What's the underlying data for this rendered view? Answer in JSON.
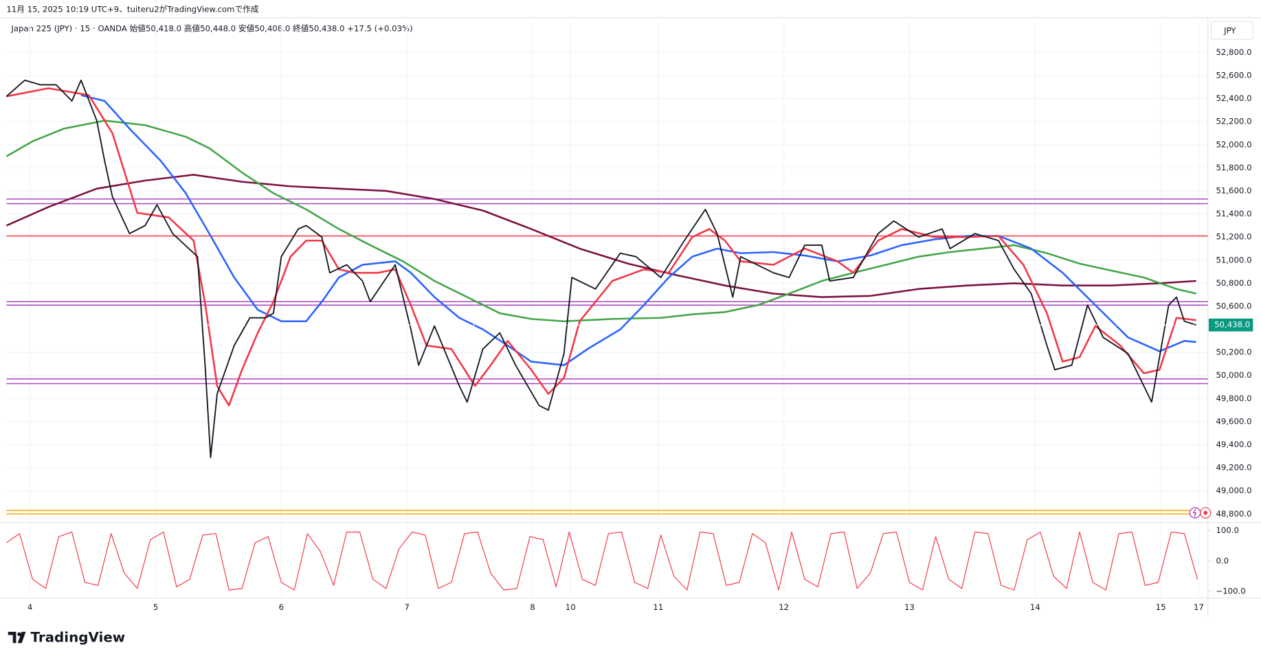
{
  "credit": "11月 15, 2025 10:19 UTC+9、tuiteru2がTradingView.comで作成",
  "brand": "TradingView",
  "chart_data": [
    {
      "type": "line",
      "title": "Japan 225 (JPY) · 15 · OANDA  始値50,418.0  高値50,448.0  安値50,408.0  終値50,438.0  +17.5 (+0.03%)",
      "currency": "JPY",
      "xlim": [
        0,
        918
      ],
      "ylim": [
        48740,
        53060
      ],
      "yticks": [
        {
          "value": 48800,
          "label": "48,800.0"
        },
        {
          "value": 49000,
          "label": "49,000.0"
        },
        {
          "value": 49200,
          "label": "49,200.0"
        },
        {
          "value": 49400,
          "label": "49,400.0"
        },
        {
          "value": 49600,
          "label": "49,600.0"
        },
        {
          "value": 49800,
          "label": "49,800.0"
        },
        {
          "value": 50000,
          "label": "50,000.0"
        },
        {
          "value": 50200,
          "label": "50,200.0"
        },
        {
          "value": 50600,
          "label": "50,600.0"
        },
        {
          "value": 50800,
          "label": "50,800.0"
        },
        {
          "value": 51000,
          "label": "51,000.0"
        },
        {
          "value": 51200,
          "label": "51,200.0"
        },
        {
          "value": 51400,
          "label": "51,400.0"
        },
        {
          "value": 51600,
          "label": "51,600.0"
        },
        {
          "value": 51800,
          "label": "51,800.0"
        },
        {
          "value": 52000,
          "label": "52,000.0"
        },
        {
          "value": 52200,
          "label": "52,200.0"
        },
        {
          "value": 52400,
          "label": "52,400.0"
        },
        {
          "value": 52600,
          "label": "52,600.0"
        },
        {
          "value": 52800,
          "label": "52,800.0"
        }
      ],
      "grid": true,
      "last": {
        "value": 50438,
        "label": "50,438.0",
        "color": "#089981"
      },
      "hlines": [
        {
          "value": 51530,
          "color": "#ab47bc"
        },
        {
          "value": 51490,
          "color": "#ab47bc"
        },
        {
          "value": 51210,
          "color": "#f23645"
        },
        {
          "value": 50640,
          "color": "#ab47bc"
        },
        {
          "value": 50610,
          "color": "#ab47bc"
        },
        {
          "value": 49970,
          "color": "#ab47bc"
        },
        {
          "value": 49930,
          "color": "#ab47bc"
        },
        {
          "value": 48830,
          "color": "#f7a600"
        },
        {
          "value": 48800,
          "color": "#f7a600"
        }
      ],
      "series": [
        {
          "color": "#7b1240",
          "width": 2.2,
          "x": [
            0,
            32,
            69,
            106,
            143,
            180,
            217,
            254,
            290,
            327,
            364,
            401,
            438,
            475,
            512,
            549,
            586,
            623,
            660,
            697,
            734,
            770,
            807,
            844,
            881,
            909
          ],
          "values": [
            51300,
            51460,
            51620,
            51690,
            51740,
            51680,
            51640,
            51620,
            51600,
            51530,
            51430,
            51270,
            51100,
            50970,
            50870,
            50780,
            50710,
            50680,
            50690,
            50750,
            50780,
            50800,
            50780,
            50780,
            50800,
            50820
          ]
        },
        {
          "color": "#43a547",
          "width": 2.2,
          "x": [
            0,
            20,
            44,
            75,
            106,
            137,
            155,
            180,
            204,
            229,
            254,
            278,
            303,
            327,
            352,
            377,
            401,
            426,
            463,
            500,
            524,
            549,
            574,
            598,
            623,
            647,
            672,
            697,
            721,
            746,
            770,
            795,
            820,
            844,
            869,
            894,
            909
          ],
          "values": [
            51900,
            52030,
            52140,
            52210,
            52170,
            52070,
            51970,
            51760,
            51580,
            51440,
            51270,
            51130,
            50990,
            50820,
            50680,
            50540,
            50490,
            50470,
            50490,
            50500,
            50530,
            50550,
            50610,
            50710,
            50820,
            50890,
            50960,
            51030,
            51070,
            51100,
            51130,
            51060,
            50970,
            50910,
            50850,
            50750,
            50710
          ]
        },
        {
          "color": "#2962ff",
          "width": 2.2,
          "x": [
            57,
            75,
            94,
            118,
            137,
            155,
            174,
            192,
            210,
            229,
            241,
            254,
            272,
            297,
            309,
            327,
            346,
            364,
            383,
            401,
            426,
            444,
            469,
            487,
            506,
            524,
            543,
            561,
            586,
            610,
            635,
            660,
            684,
            709,
            734,
            758,
            783,
            807,
            832,
            857,
            881,
            900,
            909
          ],
          "values": [
            52430,
            52380,
            52140,
            51860,
            51580,
            51230,
            50850,
            50570,
            50470,
            50470,
            50640,
            50850,
            50960,
            50990,
            50890,
            50680,
            50500,
            50400,
            50260,
            50120,
            50090,
            50230,
            50400,
            50610,
            50850,
            51030,
            51100,
            51060,
            51070,
            51040,
            50990,
            51040,
            51130,
            51180,
            51210,
            51210,
            51100,
            50890,
            50610,
            50330,
            50210,
            50300,
            50290
          ]
        },
        {
          "color": "#f23645",
          "width": 2.2,
          "x": [
            0,
            32,
            63,
            81,
            100,
            124,
            143,
            152,
            161,
            170,
            180,
            192,
            204,
            217,
            229,
            241,
            254,
            266,
            284,
            297,
            309,
            321,
            340,
            358,
            370,
            383,
            401,
            414,
            426,
            438,
            463,
            487,
            506,
            524,
            537,
            549,
            561,
            586,
            610,
            635,
            647,
            666,
            684,
            709,
            734,
            758,
            777,
            795,
            807,
            820,
            832,
            851,
            869,
            881,
            894,
            909
          ],
          "values": [
            52420,
            52490,
            52430,
            52100,
            51410,
            51370,
            51170,
            50610,
            49910,
            49740,
            50050,
            50370,
            50640,
            51030,
            51170,
            51170,
            50920,
            50890,
            50890,
            50920,
            50610,
            50260,
            50230,
            49910,
            50090,
            50300,
            50050,
            49840,
            49980,
            50470,
            50820,
            50920,
            50890,
            51200,
            51270,
            51170,
            50990,
            50960,
            51100,
            50990,
            50890,
            51170,
            51270,
            51200,
            51200,
            51210,
            50960,
            50540,
            50120,
            50160,
            50430,
            50260,
            50020,
            50050,
            50500,
            50480
          ]
        },
        {
          "color": "#131722",
          "width": 1.6,
          "x": [
            0,
            14,
            26,
            38,
            50,
            57,
            69,
            75,
            81,
            94,
            106,
            115,
            127,
            146,
            152,
            156,
            161,
            174,
            186,
            198,
            204,
            210,
            223,
            229,
            241,
            247,
            260,
            272,
            278,
            297,
            309,
            315,
            327,
            346,
            352,
            364,
            377,
            389,
            407,
            414,
            426,
            432,
            450,
            469,
            481,
            500,
            518,
            534,
            543,
            555,
            561,
            586,
            598,
            610,
            623,
            629,
            647,
            666,
            678,
            697,
            715,
            721,
            740,
            758,
            770,
            783,
            795,
            801,
            814,
            826,
            838,
            857,
            869,
            875,
            888,
            894,
            900,
            909
          ],
          "values": [
            52420,
            52560,
            52520,
            52520,
            52380,
            52560,
            52210,
            51860,
            51550,
            51230,
            51300,
            51480,
            51230,
            51030,
            50050,
            49290,
            49840,
            50260,
            50500,
            50500,
            50540,
            51030,
            51270,
            51300,
            51200,
            50890,
            50960,
            50820,
            50640,
            50960,
            50400,
            50090,
            50430,
            49910,
            49770,
            50230,
            50370,
            50090,
            49740,
            49700,
            50190,
            50850,
            50750,
            51060,
            51030,
            50850,
            51170,
            51440,
            51230,
            50680,
            51030,
            50890,
            50850,
            51130,
            51130,
            50820,
            50850,
            51230,
            51340,
            51200,
            51270,
            51100,
            51230,
            51170,
            50920,
            50710,
            50260,
            50050,
            50090,
            50610,
            50330,
            50190,
            49910,
            49770,
            50610,
            50680,
            50470,
            50438
          ]
        }
      ]
    },
    {
      "type": "line",
      "xlim": [
        0,
        918
      ],
      "ylim": [
        -116,
        121
      ],
      "yticks": [
        {
          "value": 100,
          "label": "100.0"
        },
        {
          "value": 0,
          "label": "0.0"
        },
        {
          "value": -100,
          "label": "−100.0"
        }
      ],
      "xticks": [
        {
          "value": 18,
          "label": "4"
        },
        {
          "value": 114,
          "label": "5"
        },
        {
          "value": 210,
          "label": "6"
        },
        {
          "value": 306,
          "label": "7"
        },
        {
          "value": 402,
          "label": "8"
        },
        {
          "value": 431,
          "label": "10"
        },
        {
          "value": 498,
          "label": "11"
        },
        {
          "value": 594,
          "label": "12"
        },
        {
          "value": 690,
          "label": "13"
        },
        {
          "value": 786,
          "label": "14"
        },
        {
          "value": 882,
          "label": "15"
        },
        {
          "value": 911,
          "label": "17"
        }
      ],
      "series": [
        {
          "color": "#f23645",
          "width": 1,
          "x": [
            0,
            10,
            20,
            30,
            40,
            50,
            60,
            70,
            80,
            90,
            100,
            110,
            120,
            130,
            140,
            150,
            160,
            170,
            180,
            190,
            200,
            210,
            220,
            230,
            240,
            250,
            260,
            270,
            280,
            290,
            300,
            310,
            320,
            330,
            340,
            350,
            360,
            370,
            380,
            390,
            400,
            410,
            420,
            430,
            440,
            450,
            460,
            470,
            480,
            490,
            500,
            510,
            520,
            530,
            540,
            550,
            560,
            570,
            580,
            590,
            600,
            610,
            620,
            630,
            640,
            650,
            660,
            670,
            680,
            690,
            700,
            710,
            720,
            730,
            740,
            750,
            760,
            770,
            780,
            790,
            800,
            810,
            820,
            830,
            840,
            850,
            860,
            870,
            880,
            890,
            900,
            910
          ],
          "values": [
            60,
            90,
            -60,
            -90,
            80,
            95,
            -70,
            -80,
            90,
            -40,
            -90,
            70,
            95,
            -85,
            -60,
            85,
            90,
            -95,
            -90,
            60,
            80,
            -70,
            -95,
            90,
            30,
            -80,
            95,
            95,
            -60,
            -90,
            40,
            95,
            85,
            -90,
            -70,
            90,
            95,
            -40,
            -95,
            -90,
            80,
            70,
            -85,
            95,
            -60,
            -80,
            90,
            95,
            -70,
            -90,
            85,
            -50,
            -95,
            95,
            90,
            -80,
            -70,
            90,
            60,
            -95,
            95,
            -60,
            -85,
            90,
            95,
            -90,
            -40,
            90,
            95,
            -70,
            -95,
            80,
            -60,
            -90,
            95,
            90,
            -80,
            -95,
            70,
            95,
            -50,
            -90,
            95,
            -70,
            -95,
            90,
            95,
            -80,
            -70,
            95,
            90,
            -60
          ]
        }
      ]
    }
  ]
}
